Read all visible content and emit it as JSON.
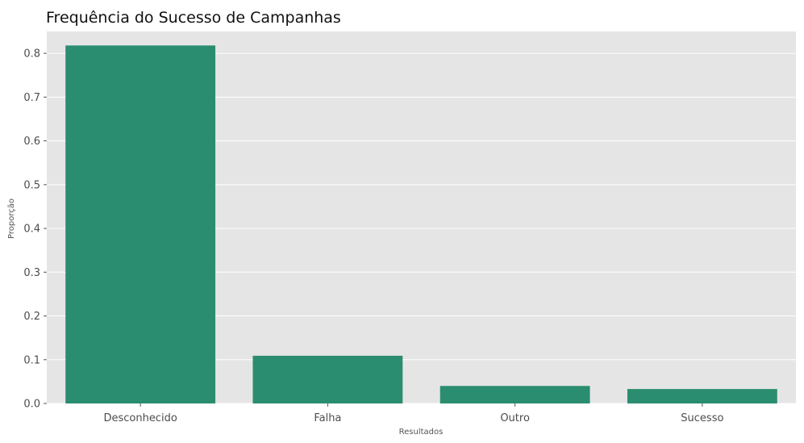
{
  "chart_data": {
    "type": "bar",
    "title": "Frequência do Sucesso de Campanhas",
    "xlabel": "Resultados",
    "ylabel": "Proporção",
    "categories": [
      "Desconhecido",
      "Falha",
      "Outro",
      "Sucesso"
    ],
    "values": [
      0.818,
      0.109,
      0.04,
      0.033
    ],
    "ylim": [
      0,
      0.85
    ],
    "yticks": [
      0.0,
      0.1,
      0.2,
      0.3,
      0.4,
      0.5,
      0.6,
      0.7,
      0.8
    ],
    "ytick_labels": [
      "0.0",
      "0.1",
      "0.2",
      "0.3",
      "0.4",
      "0.5",
      "0.6",
      "0.7",
      "0.8"
    ],
    "grid": "horizontal",
    "colors": {
      "bar": "#2a8d6f",
      "plot_background": "#e5e5e5",
      "grid": "#ffffff"
    }
  }
}
